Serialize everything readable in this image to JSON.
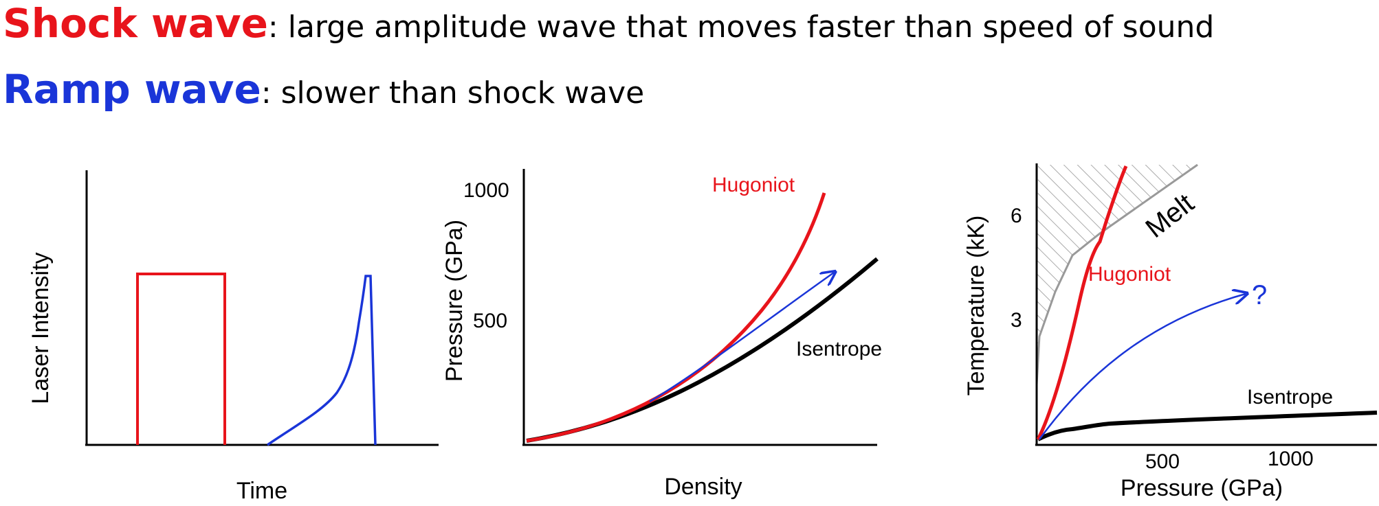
{
  "header": {
    "shock_term": "Shock wave",
    "shock_desc": ": large amplitude wave that moves faster than speed of sound",
    "ramp_term": "Ramp wave",
    "ramp_desc": ": slower than shock wave",
    "shock_color": "#e8141b",
    "ramp_color": "#1a35d8"
  },
  "panel1": {
    "ylabel": "Laser Intensity",
    "xlabel": "Time"
  },
  "panel2": {
    "ylabel": "Pressure (GPa)",
    "xlabel": "Density",
    "tick_1000": "1000",
    "tick_500": "500",
    "label_hugoniot": "Hugoniot",
    "label_isentrope": "Isentrope"
  },
  "panel3": {
    "ylabel": "Temperature (kK)",
    "xlabel": "Pressure (GPa)",
    "tick_y6": "6",
    "tick_y3": "3",
    "tick_x500": "500",
    "tick_x1000": "1000",
    "label_melt": "Melt",
    "label_hugoniot": "Hugoniot",
    "label_isentrope": "Isentrope",
    "label_question": "?"
  },
  "colors": {
    "shock": "#e8141b",
    "ramp": "#1a35d8",
    "axis": "#000000",
    "melt_hatch": "#aaaaaa"
  }
}
